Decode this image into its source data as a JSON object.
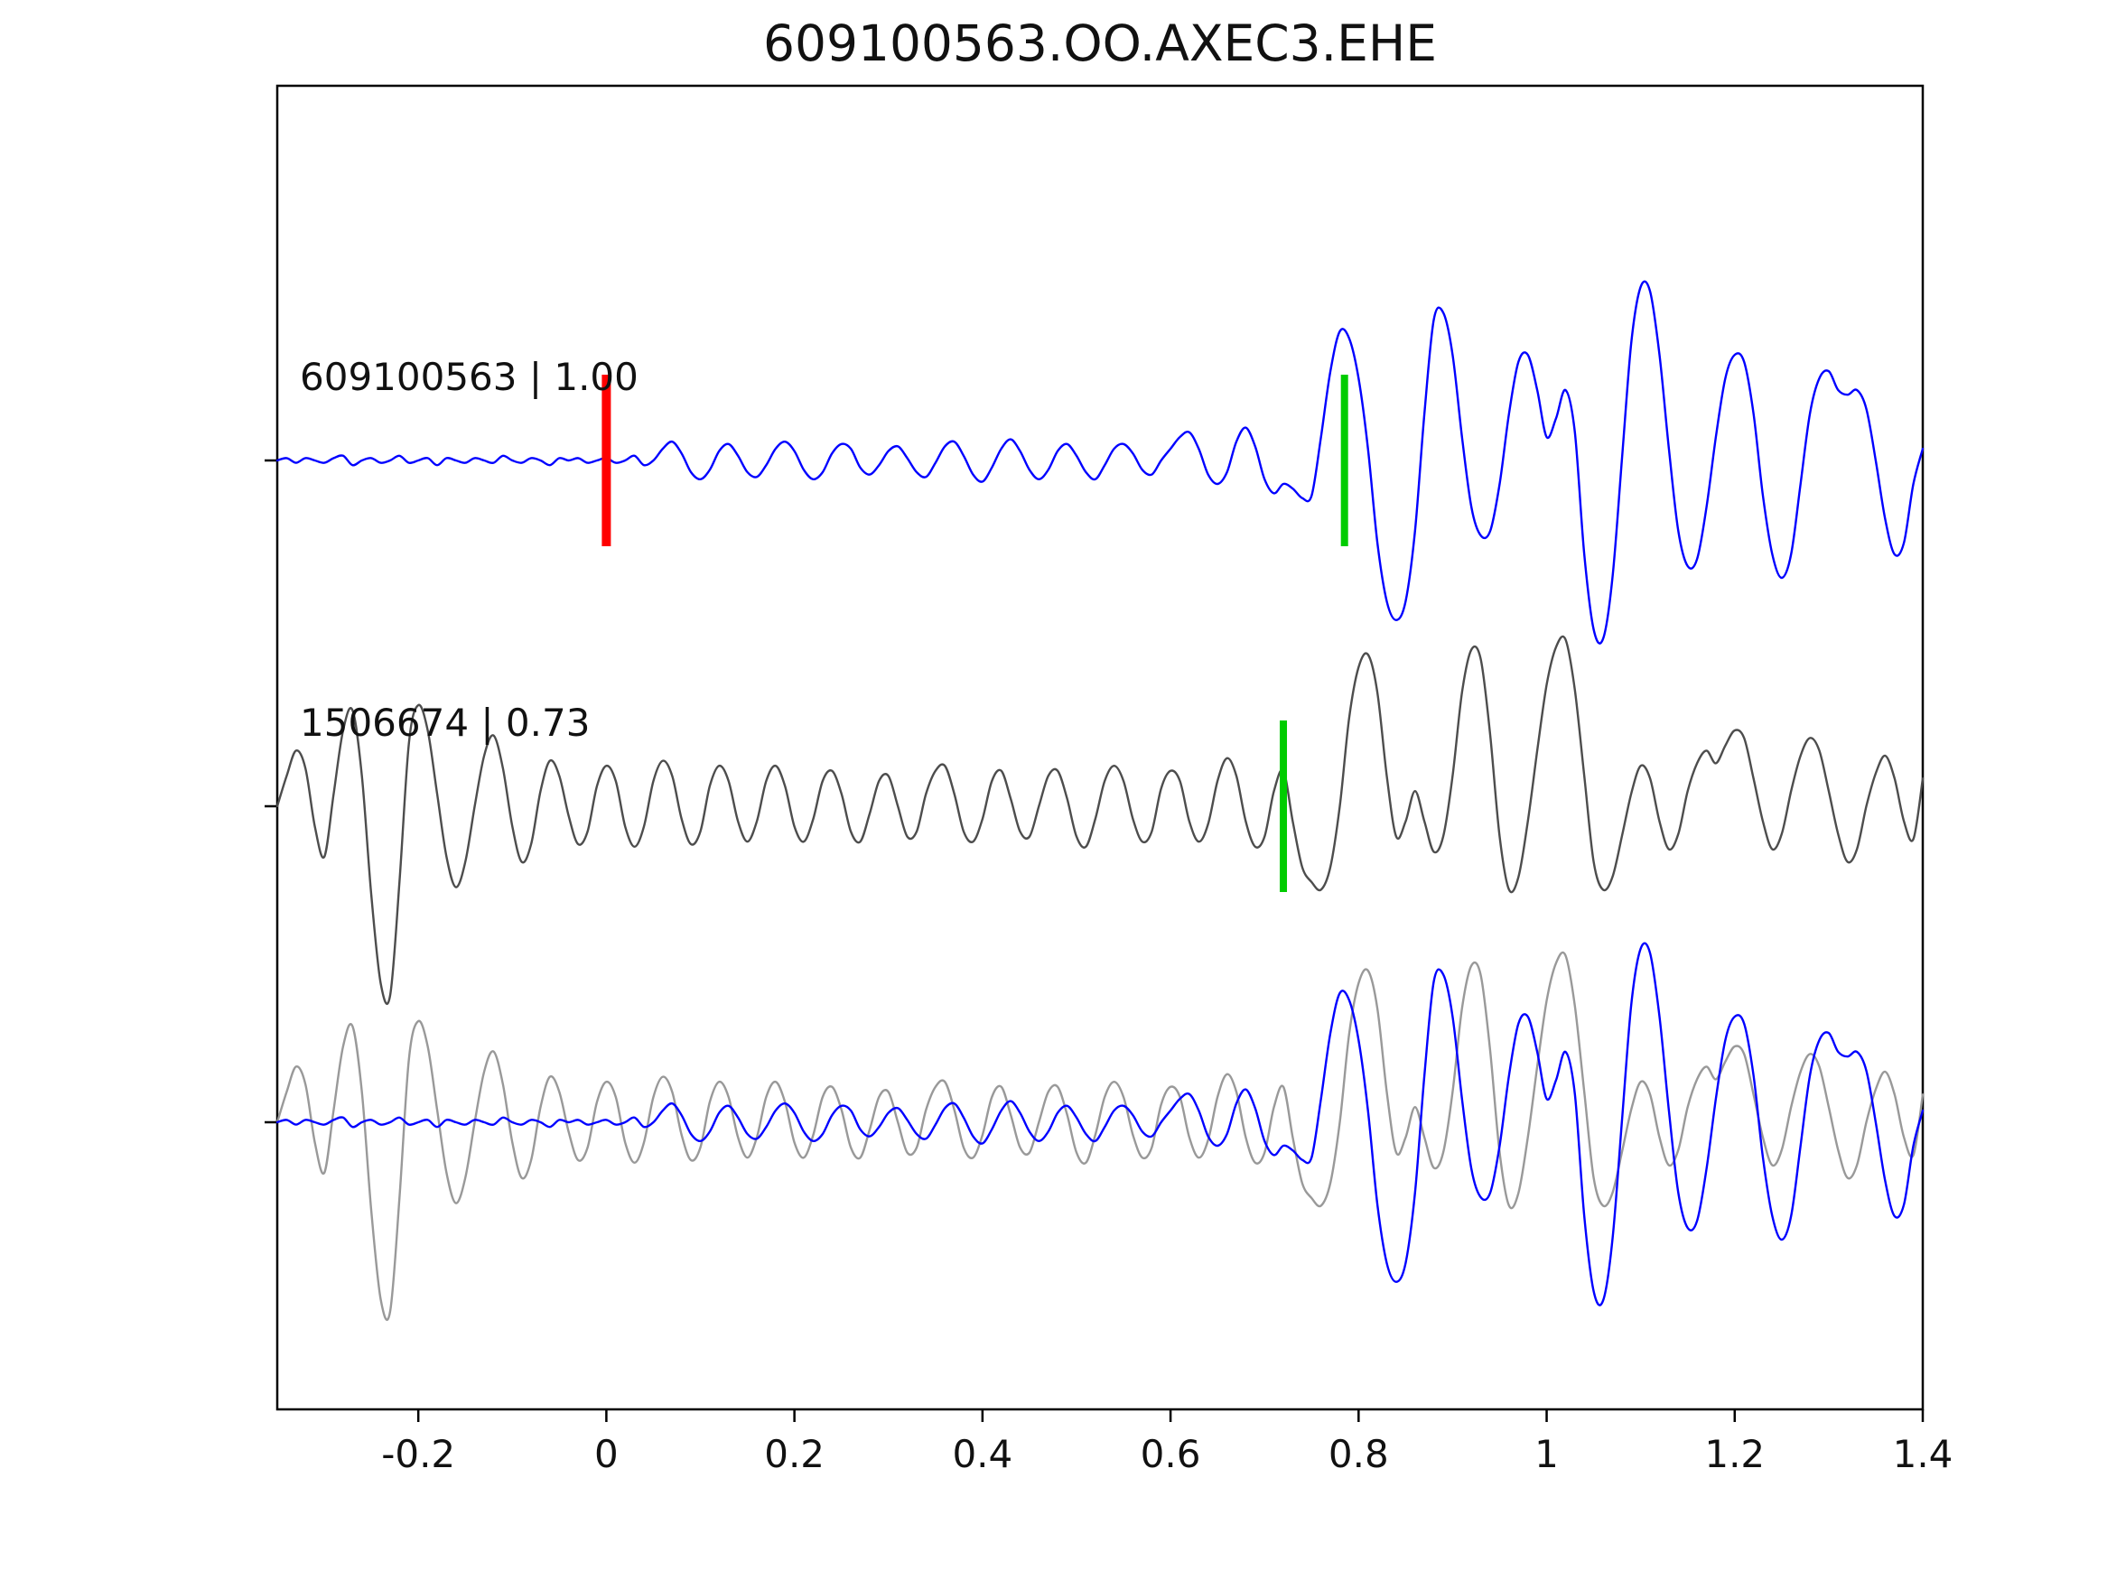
{
  "title": "609100563.OO.AXEC3.EHE",
  "chart_data": {
    "type": "line",
    "description": "Waveform cross-correlation figure: reference trace, matched trace, and overlay of both",
    "x0": -0.35,
    "dx": 0.01,
    "xlim": [
      -0.35,
      1.4
    ],
    "xticks": [
      -0.2,
      0,
      0.2,
      0.4,
      0.6,
      0.8,
      1,
      1.2,
      1.4
    ],
    "xtick_labels": [
      "-0.2",
      "0",
      "0.2",
      "0.4",
      "0.6",
      "0.8",
      "1",
      "1.2",
      "1.4"
    ],
    "grid": false,
    "colors": {
      "reference": "#0000ff",
      "match": "#4d4d4d",
      "match_overlay": "#999999",
      "pick_red": "#ff0000",
      "pick_green": "#00cc00",
      "axis": "#000000"
    },
    "series": {
      "reference": {
        "name": "609100563",
        "values": [
          0,
          0.01,
          -0.01,
          0.01,
          0,
          -0.01,
          0.01,
          0.02,
          -0.02,
          0,
          0.01,
          -0.01,
          0,
          0.02,
          -0.01,
          0,
          0.01,
          -0.02,
          0.01,
          0,
          -0.01,
          0.01,
          0,
          -0.01,
          0.02,
          0,
          -0.01,
          0.01,
          0,
          -0.02,
          0.01,
          0,
          0.01,
          -0.01,
          0,
          0.01,
          -0.01,
          0,
          0.02,
          -0.02,
          0,
          0.05,
          0.08,
          0.03,
          -0.05,
          -0.08,
          -0.04,
          0.04,
          0.07,
          0.02,
          -0.05,
          -0.07,
          -0.02,
          0.05,
          0.08,
          0.04,
          -0.04,
          -0.08,
          -0.05,
          0.03,
          0.07,
          0.05,
          -0.03,
          -0.06,
          -0.02,
          0.04,
          0.06,
          0.01,
          -0.05,
          -0.07,
          -0.01,
          0.06,
          0.08,
          0.02,
          -0.06,
          -0.09,
          -0.03,
          0.05,
          0.09,
          0.04,
          -0.04,
          -0.08,
          -0.04,
          0.04,
          0.07,
          0.02,
          -0.05,
          -0.08,
          -0.02,
          0.05,
          0.07,
          0.03,
          -0.04,
          -0.06,
          0,
          0.05,
          0.1,
          0.12,
          0.05,
          -0.06,
          -0.1,
          -0.05,
          0.08,
          0.14,
          0.06,
          -0.08,
          -0.14,
          -0.1,
          -0.12,
          -0.16,
          -0.15,
          0.1,
          0.38,
          0.55,
          0.52,
          0.35,
          0.05,
          -0.35,
          -0.6,
          -0.68,
          -0.6,
          -0.3,
          0.2,
          0.6,
          0.63,
          0.45,
          0.1,
          -0.2,
          -0.32,
          -0.3,
          -0.1,
          0.2,
          0.42,
          0.45,
          0.3,
          0.1,
          0.18,
          0.3,
          0.12,
          -0.4,
          -0.72,
          -0.76,
          -0.5,
          0,
          0.5,
          0.74,
          0.72,
          0.45,
          0.05,
          -0.3,
          -0.45,
          -0.42,
          -0.2,
          0.1,
          0.35,
          0.45,
          0.42,
          0.2,
          -0.15,
          -0.4,
          -0.5,
          -0.4,
          -0.1,
          0.2,
          0.35,
          0.38,
          0.3,
          0.28,
          0.3,
          0.22,
          0,
          -0.25,
          -0.4,
          -0.35,
          -0.1,
          0.05
        ]
      },
      "match": {
        "name": "1506674",
        "values": [
          0,
          0.12,
          0.22,
          0.15,
          -0.08,
          -0.2,
          0.05,
          0.3,
          0.38,
          0.12,
          -0.35,
          -0.7,
          -0.75,
          -0.3,
          0.25,
          0.4,
          0.3,
          0.05,
          -0.2,
          -0.32,
          -0.22,
          0,
          0.2,
          0.28,
          0.15,
          -0.08,
          -0.22,
          -0.15,
          0.06,
          0.18,
          0.12,
          -0.04,
          -0.15,
          -0.1,
          0.08,
          0.16,
          0.1,
          -0.08,
          -0.16,
          -0.08,
          0.1,
          0.18,
          0.12,
          -0.05,
          -0.15,
          -0.1,
          0.08,
          0.16,
          0.1,
          -0.06,
          -0.14,
          -0.06,
          0.1,
          0.16,
          0.08,
          -0.08,
          -0.14,
          -0.05,
          0.1,
          0.14,
          0.05,
          -0.1,
          -0.14,
          -0.03,
          0.1,
          0.12,
          0,
          -0.12,
          -0.1,
          0.05,
          0.14,
          0.16,
          0.05,
          -0.1,
          -0.14,
          -0.05,
          0.1,
          0.14,
          0.03,
          -0.1,
          -0.12,
          0,
          0.12,
          0.14,
          0.03,
          -0.12,
          -0.16,
          -0.05,
          0.1,
          0.16,
          0.1,
          -0.05,
          -0.14,
          -0.1,
          0.07,
          0.14,
          0.1,
          -0.06,
          -0.14,
          -0.07,
          0.1,
          0.19,
          0.12,
          -0.06,
          -0.16,
          -0.12,
          0.06,
          0.14,
          -0.06,
          -0.24,
          -0.3,
          -0.33,
          -0.24,
          0,
          0.35,
          0.55,
          0.6,
          0.45,
          0.12,
          -0.12,
          -0.06,
          0.06,
          -0.06,
          -0.18,
          -0.12,
          0.12,
          0.45,
          0.62,
          0.58,
          0.28,
          -0.12,
          -0.33,
          -0.28,
          -0.06,
          0.22,
          0.48,
          0.63,
          0.66,
          0.46,
          0.12,
          -0.22,
          -0.33,
          -0.28,
          -0.12,
          0.05,
          0.16,
          0.11,
          -0.06,
          -0.17,
          -0.11,
          0.06,
          0.17,
          0.22,
          0.17,
          0.24,
          0.3,
          0.27,
          0.11,
          -0.06,
          -0.17,
          -0.11,
          0.06,
          0.2,
          0.27,
          0.22,
          0.06,
          -0.11,
          -0.22,
          -0.17,
          0,
          0.13,
          0.2,
          0.11,
          -0.06,
          -0.13,
          0.11
        ]
      }
    },
    "rows": [
      {
        "label": "609100563 | 1.00",
        "draws": [
          {
            "series": "reference",
            "color": "#0000ff"
          }
        ],
        "markers": [
          {
            "x": 0,
            "color": "#ff0000"
          },
          {
            "x": 0.785,
            "color": "#00cc00"
          }
        ]
      },
      {
        "label": "1506674 | 0.73",
        "draws": [
          {
            "series": "match",
            "color": "#4d4d4d"
          }
        ],
        "markers": [
          {
            "x": 0.72,
            "color": "#00cc00"
          }
        ]
      },
      {
        "label": "",
        "draws": [
          {
            "series": "match",
            "color": "#999999"
          },
          {
            "series": "reference",
            "color": "#0000ff"
          }
        ],
        "markers": []
      }
    ]
  }
}
